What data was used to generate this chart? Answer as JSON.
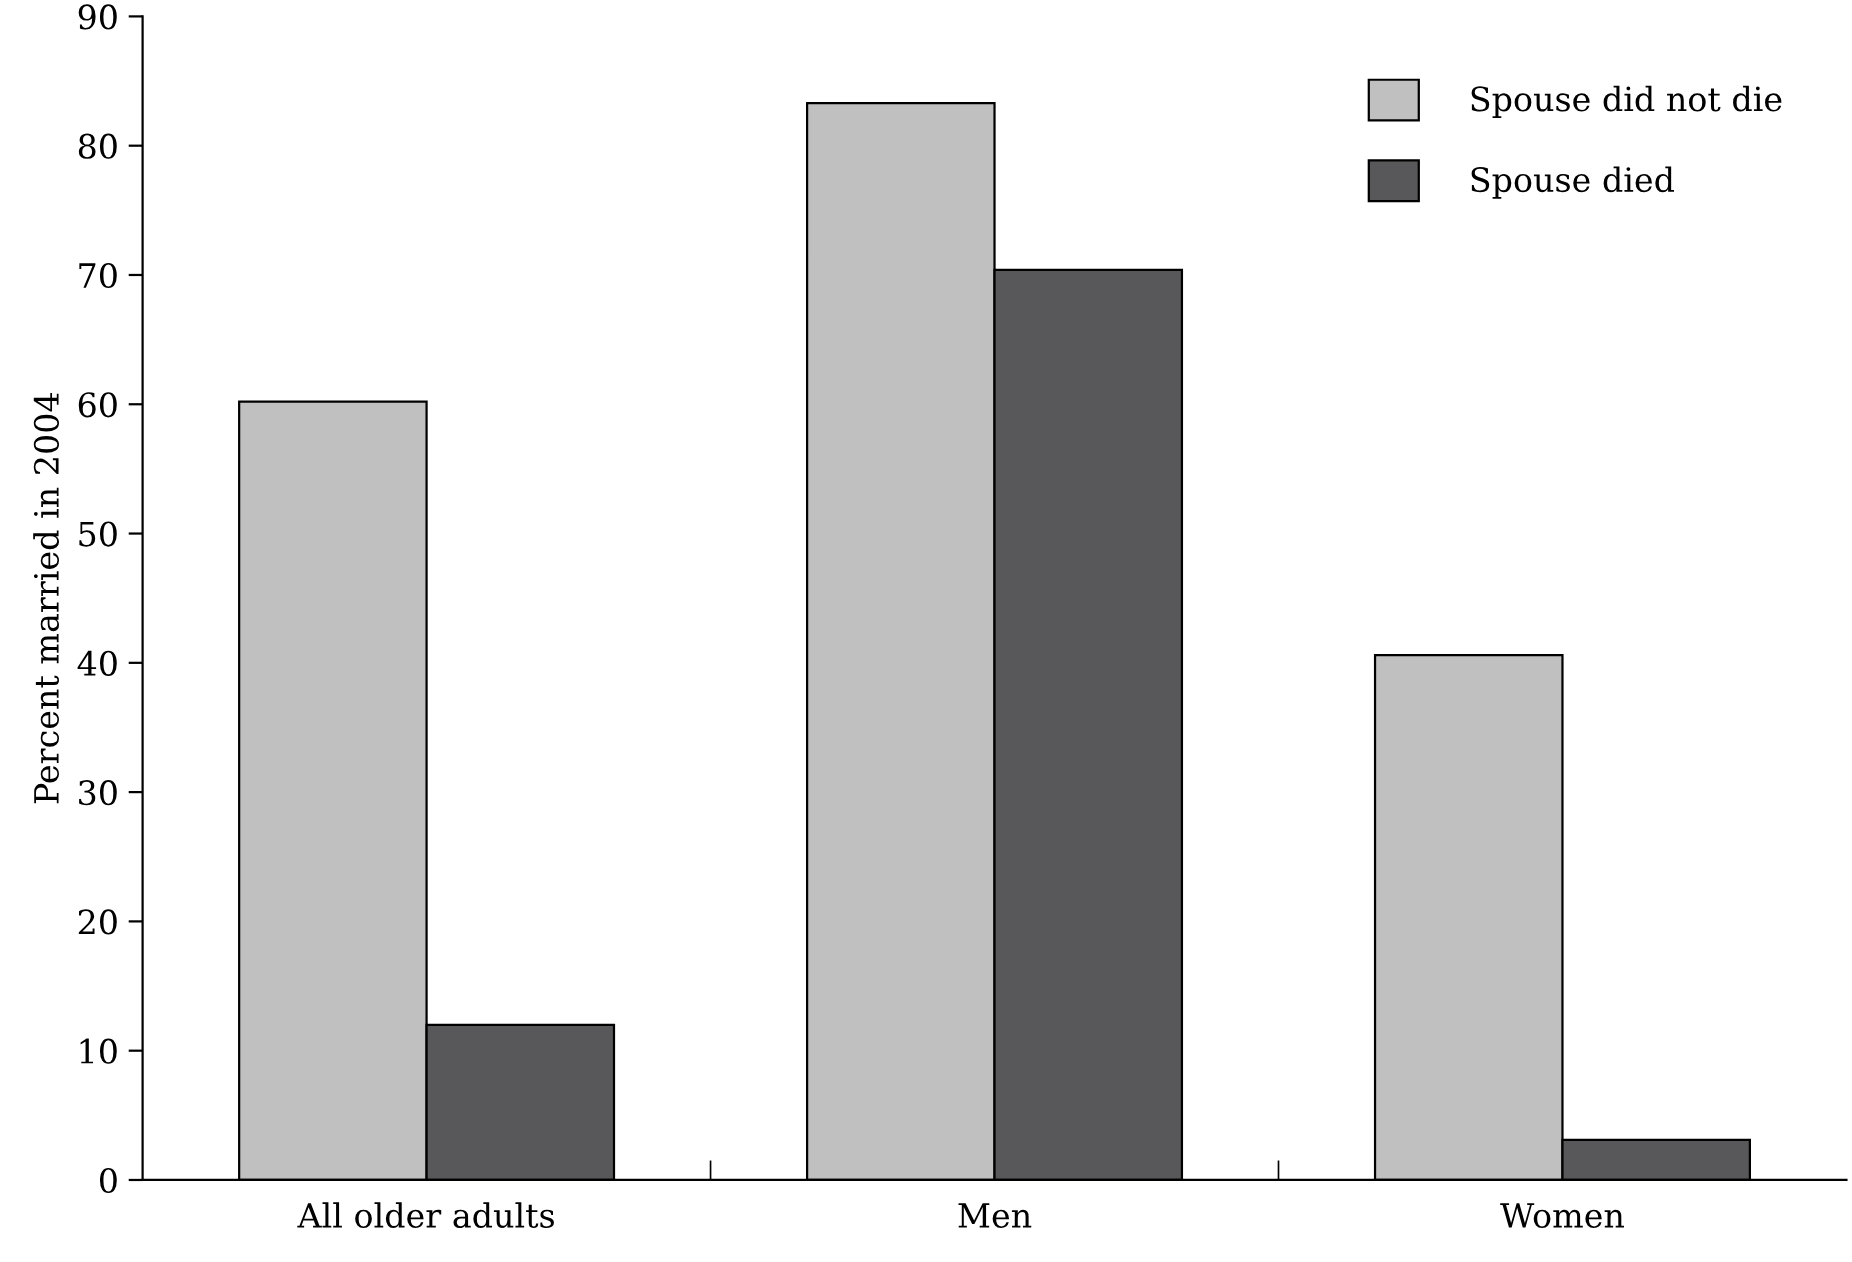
{
  "chart_data": {
    "type": "bar",
    "ylabel": "Percent married in 2004",
    "categories": [
      "All older adults",
      "Men",
      "Women"
    ],
    "series": [
      {
        "name": "Spouse did not die",
        "color": "#c0c0c0",
        "values": [
          60.2,
          83.3,
          40.6
        ]
      },
      {
        "name": "Spouse died",
        "color": "#58585a",
        "values": [
          12.0,
          70.4,
          3.1
        ]
      }
    ],
    "ylim": [
      0,
      90
    ],
    "yticks": [
      0,
      10,
      20,
      30,
      40,
      50,
      60,
      70,
      80,
      90
    ],
    "grid": false,
    "legend": "top right"
  }
}
